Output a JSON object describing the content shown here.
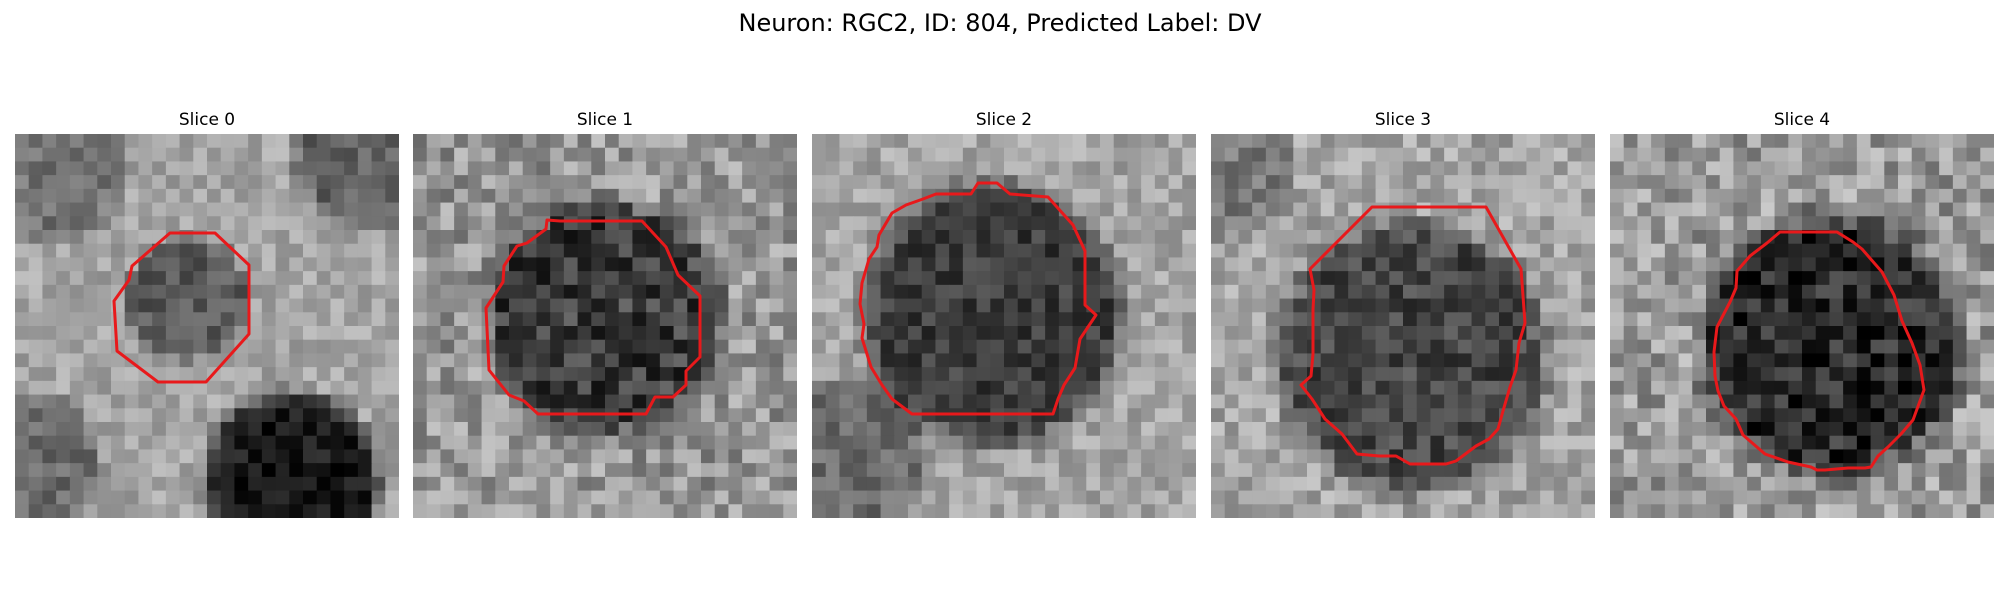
{
  "figure": {
    "title": "Neuron: RGC2, ID: 804, Predicted Label: DV"
  },
  "panels": [
    {
      "title": "Slice 0"
    },
    {
      "title": "Slice 1"
    },
    {
      "title": "Slice 2"
    },
    {
      "title": "Slice 3"
    },
    {
      "title": "Slice 4"
    }
  ],
  "colors": {
    "contour": "#e8191b",
    "background": "#ffffff",
    "text": "#000000"
  }
}
